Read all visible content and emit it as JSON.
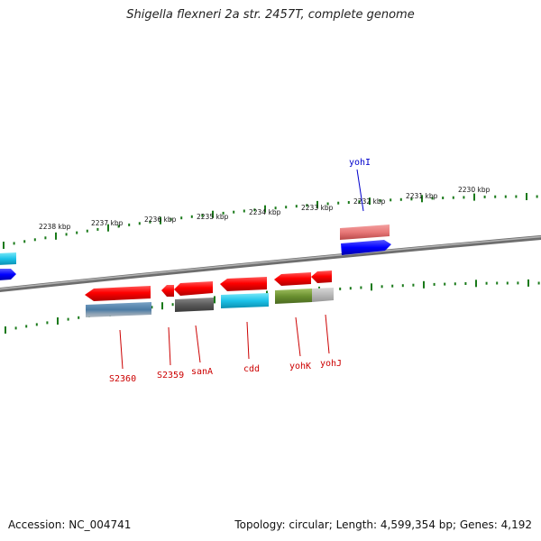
{
  "title": "Shigella flexneri 2a str. 2457T, complete genome",
  "footer": {
    "accession": "Accession: NC_004741",
    "topology": "Topology: circular; Length: 4,599,354 bp; Genes: 4,192"
  },
  "ruler_labels": [
    "2238 kbp",
    "2237 kbp",
    "2236 kbp",
    "2235 kbp",
    "2234 kbp",
    "2233 kbp",
    "2232 kbp",
    "2231 kbp",
    "2230 kbp"
  ],
  "gene_labels": {
    "yohI": "yohI",
    "S2360": "S2360",
    "S2359": "S2359",
    "sanA": "sanA",
    "cdd": "cdd",
    "yohK": "yohK",
    "yohJ": "yohJ"
  },
  "colors": {
    "forward_label": "#0000cc",
    "reverse_label": "#cc0000",
    "tick": "#1a7a1a",
    "backbone": "#888888"
  }
}
